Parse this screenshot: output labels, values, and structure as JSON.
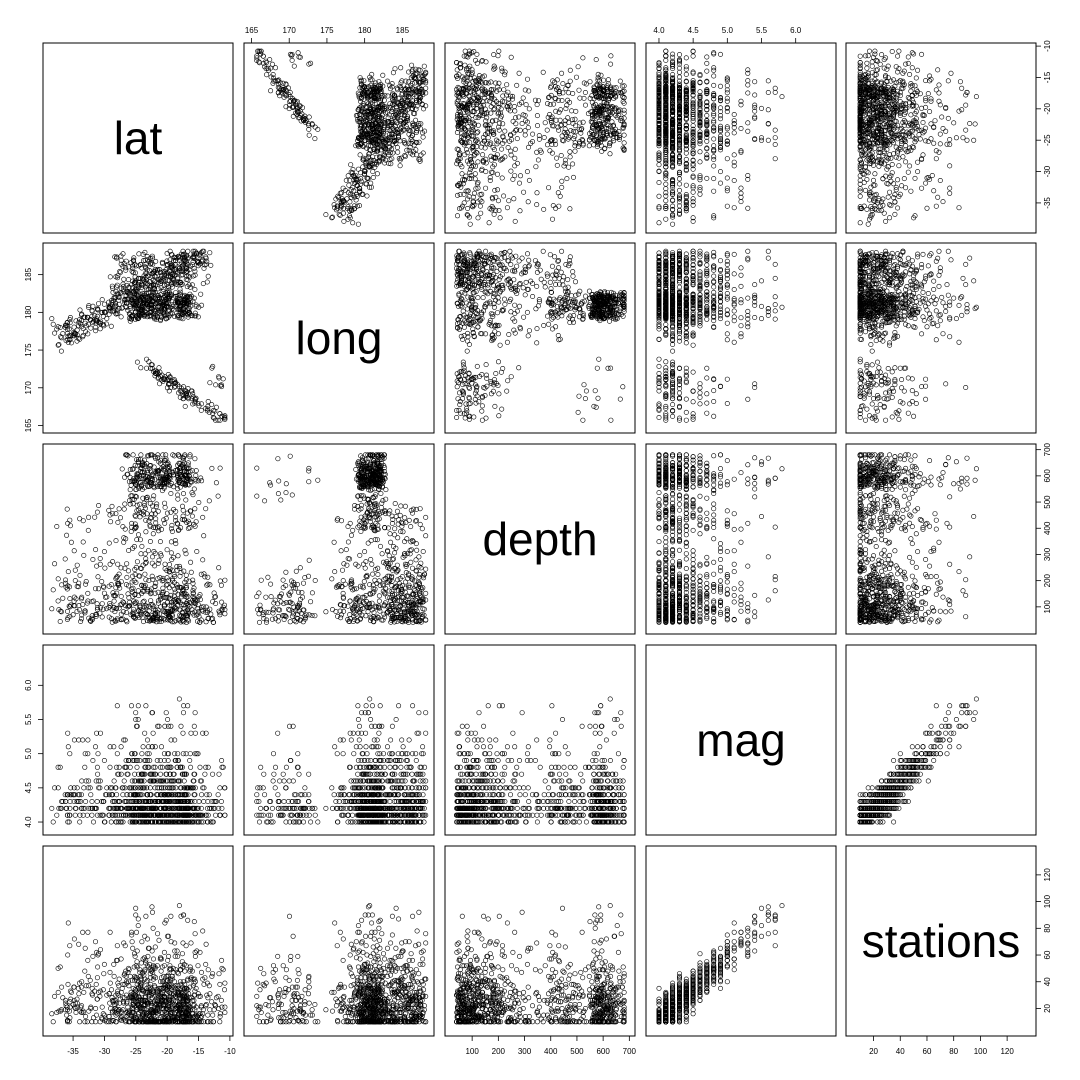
{
  "chart_data": {
    "type": "scatter",
    "matrix": true,
    "variables": [
      "lat",
      "long",
      "depth",
      "mag",
      "stations"
    ],
    "axes": {
      "lat": {
        "range": [
          -38.6,
          -10.7
        ],
        "ticks": [
          -35,
          -30,
          -25,
          -20,
          -15,
          -10
        ],
        "tick_labels": [
          "-35",
          "-30",
          "-25",
          "-20",
          "-15",
          "-10"
        ]
      },
      "long": {
        "range": [
          165.0,
          188.2
        ],
        "ticks": [
          165,
          170,
          175,
          180,
          185
        ],
        "tick_labels": [
          "165",
          "170",
          "175",
          "180",
          "185"
        ]
      },
      "depth": {
        "range": [
          25,
          693
        ],
        "ticks": [
          100,
          200,
          300,
          400,
          500,
          600,
          700
        ],
        "tick_labels": [
          "100",
          "200",
          "300",
          "400",
          "500",
          "600",
          "700"
        ]
      },
      "mag": {
        "range": [
          3.92,
          6.48
        ],
        "ticks": [
          4.0,
          4.5,
          5.0,
          5.5,
          6.0
        ],
        "tick_labels": [
          "4.0",
          "4.5",
          "5.0",
          "5.5",
          "6.0"
        ]
      },
      "stations": {
        "range": [
          5,
          136
        ],
        "ticks": [
          20,
          40,
          60,
          80,
          100,
          120
        ],
        "tick_labels": [
          "20",
          "40",
          "60",
          "80",
          "100",
          "120"
        ]
      }
    },
    "grid": false,
    "legend": "none",
    "point_style": "open-circle",
    "n_points": 1000
  }
}
